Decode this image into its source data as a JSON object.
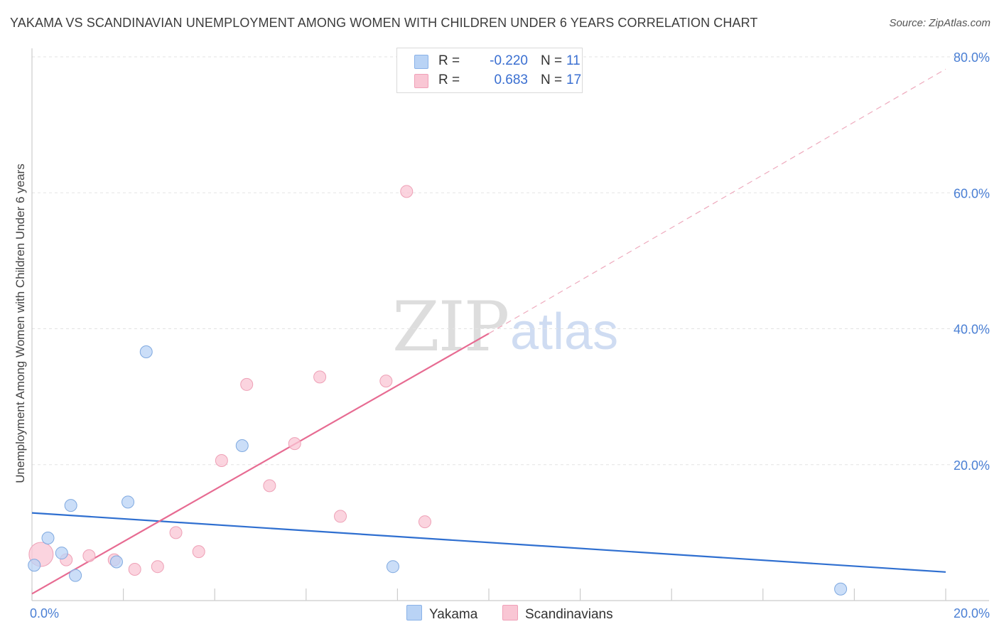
{
  "header": {
    "title": "YAKAMA VS SCANDINAVIAN UNEMPLOYMENT AMONG WOMEN WITH CHILDREN UNDER 6 YEARS CORRELATION CHART",
    "source": "Source: ZipAtlas.com"
  },
  "watermark": {
    "zip": "ZIP",
    "atlas": "atlas"
  },
  "legend": {
    "series": [
      {
        "r_label": "R =",
        "r_value": "-0.220",
        "n_label": "N =",
        "n_value": "11",
        "color": "#b9d3f5",
        "border": "#8ab2e8"
      },
      {
        "r_label": "R =",
        "r_value": "0.683",
        "n_label": "N =",
        "n_value": "17",
        "color": "#f9c6d4",
        "border": "#f0a0b8"
      }
    ]
  },
  "bottom_legend": {
    "items": [
      {
        "label": "Yakama",
        "color": "#b9d3f5",
        "border": "#8ab2e8"
      },
      {
        "label": "Scandinavians",
        "color": "#f9c6d4",
        "border": "#f0a0b8"
      }
    ]
  },
  "colors": {
    "yakama_fill": "#b9d3f5",
    "yakama_stroke": "#7fa9e0",
    "yakama_line": "#2f6fd0",
    "scand_fill": "#f9c6d4",
    "scand_stroke": "#eea0b6",
    "scand_line": "#e76b92",
    "grid": "#e3e3e3",
    "axis": "#cccccc"
  },
  "chart_data": {
    "type": "scatter",
    "title": "YAKAMA VS SCANDINAVIAN UNEMPLOYMENT AMONG WOMEN WITH CHILDREN UNDER 6 YEARS CORRELATION CHART",
    "xlabel": "",
    "ylabel": "Unemployment Among Women with Children Under 6 years",
    "xlim": [
      0,
      20
    ],
    "ylim": [
      0,
      80
    ],
    "x_tick_labels": [
      {
        "value": 0,
        "label": "0.0%"
      },
      {
        "value": 20,
        "label": "20.0%"
      }
    ],
    "y_tick_labels": [
      {
        "value": 20,
        "label": "20.0%"
      },
      {
        "value": 40,
        "label": "40.0%"
      },
      {
        "value": 60,
        "label": "60.0%"
      },
      {
        "value": 80,
        "label": "80.0%"
      }
    ],
    "grid": true,
    "series": [
      {
        "name": "Yakama",
        "points": [
          {
            "x": 0.05,
            "y": 5.2
          },
          {
            "x": 0.35,
            "y": 9.2
          },
          {
            "x": 0.65,
            "y": 7.0
          },
          {
            "x": 0.85,
            "y": 14.0
          },
          {
            "x": 0.95,
            "y": 3.7
          },
          {
            "x": 1.85,
            "y": 5.7
          },
          {
            "x": 2.1,
            "y": 14.5
          },
          {
            "x": 2.5,
            "y": 36.6
          },
          {
            "x": 4.6,
            "y": 22.8
          },
          {
            "x": 7.9,
            "y": 5.0
          },
          {
            "x": 17.7,
            "y": 1.7
          }
        ],
        "trend": {
          "x0": 0,
          "y0": 12.9,
          "x1": 20,
          "y1": 4.2
        }
      },
      {
        "name": "Scandinavians",
        "points": [
          {
            "x": 0.2,
            "y": 6.8,
            "big": true
          },
          {
            "x": 0.75,
            "y": 6.0
          },
          {
            "x": 1.25,
            "y": 6.6
          },
          {
            "x": 1.8,
            "y": 6.0
          },
          {
            "x": 2.25,
            "y": 4.6
          },
          {
            "x": 2.75,
            "y": 5.0
          },
          {
            "x": 3.15,
            "y": 10.0
          },
          {
            "x": 3.65,
            "y": 7.2
          },
          {
            "x": 4.15,
            "y": 20.6
          },
          {
            "x": 4.7,
            "y": 31.8
          },
          {
            "x": 5.2,
            "y": 16.9
          },
          {
            "x": 5.75,
            "y": 23.1
          },
          {
            "x": 6.3,
            "y": 32.9
          },
          {
            "x": 6.75,
            "y": 12.4
          },
          {
            "x": 7.75,
            "y": 32.3
          },
          {
            "x": 8.2,
            "y": 60.2
          },
          {
            "x": 8.6,
            "y": 11.6
          }
        ],
        "trend": {
          "x0": 0,
          "y0": 1.0,
          "x1": 10,
          "y1": 39.3
        },
        "trend_dashed": {
          "x0": 10,
          "y0": 39.3,
          "x1": 20,
          "y1": 78.2
        }
      }
    ]
  }
}
